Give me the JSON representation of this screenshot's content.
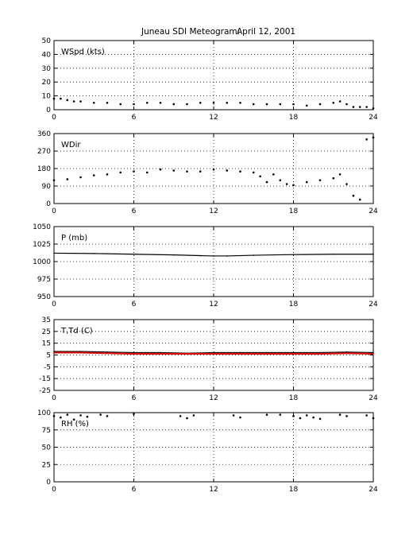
{
  "title": "Juneau SDI Meteogram:",
  "date": "April 12, 2001",
  "chart_data": [
    {
      "type": "scatter",
      "label": "WSpd (kts)",
      "xlim": [
        0,
        24
      ],
      "ylim": [
        0,
        50
      ],
      "xticks": [
        0,
        6,
        12,
        18,
        24
      ],
      "yticks": [
        0,
        10,
        20,
        30,
        40,
        50
      ],
      "grid": true,
      "series": [
        {
          "color": "#000000",
          "x": [
            0,
            0.5,
            1,
            1.5,
            2,
            3,
            4,
            5,
            6,
            7,
            8,
            9,
            10,
            11,
            12,
            13,
            14,
            15,
            16,
            17,
            18,
            19,
            20,
            21,
            21.5,
            22,
            22.5,
            23,
            23.5,
            24
          ],
          "values": [
            8,
            8,
            7,
            6,
            6,
            5,
            5,
            4,
            4,
            5,
            5,
            4,
            4,
            5,
            5,
            5,
            5,
            4,
            4,
            4,
            4,
            3,
            4,
            5,
            6,
            4,
            2,
            2,
            2,
            1
          ]
        }
      ]
    },
    {
      "type": "scatter",
      "label": "WDir",
      "xlim": [
        0,
        24
      ],
      "ylim": [
        0,
        360
      ],
      "xticks": [
        0,
        6,
        12,
        18,
        24
      ],
      "yticks": [
        0,
        90,
        180,
        270,
        360
      ],
      "grid": true,
      "series": [
        {
          "color": "#000000",
          "x": [
            0,
            1,
            2,
            3,
            4,
            5,
            6,
            7,
            8,
            9,
            10,
            11,
            12,
            13,
            14,
            15,
            15.5,
            16,
            16.5,
            17,
            17.5,
            18,
            19,
            20,
            21,
            21.5,
            22,
            22.5,
            23,
            23.5,
            24
          ],
          "values": [
            120,
            125,
            135,
            145,
            150,
            160,
            165,
            160,
            175,
            170,
            165,
            165,
            175,
            170,
            165,
            160,
            140,
            110,
            150,
            120,
            100,
            95,
            110,
            120,
            130,
            150,
            100,
            40,
            20,
            330,
            340
          ]
        }
      ]
    },
    {
      "type": "line",
      "label": "P (mb)",
      "xlim": [
        0,
        24
      ],
      "ylim": [
        950,
        1050
      ],
      "xticks": [
        0,
        6,
        12,
        18,
        24
      ],
      "yticks": [
        950,
        975,
        1000,
        1025,
        1050
      ],
      "grid": true,
      "series": [
        {
          "color": "#000000",
          "x": [
            0,
            3,
            6,
            9,
            11,
            12,
            13,
            15,
            18,
            21,
            24
          ],
          "values": [
            1012,
            1011.5,
            1010.5,
            1009.5,
            1008.5,
            1008,
            1008,
            1009,
            1010,
            1010.5,
            1010.5
          ]
        }
      ]
    },
    {
      "type": "line",
      "label": "T,Td (C)",
      "xlim": [
        0,
        24
      ],
      "ylim": [
        -25,
        35
      ],
      "xticks": [
        0,
        6,
        12,
        18,
        24
      ],
      "yticks": [
        -25,
        -15,
        -5,
        5,
        15,
        25,
        35
      ],
      "grid": true,
      "series": [
        {
          "color": "#000000",
          "x": [
            0,
            2,
            4,
            6,
            8,
            10,
            12,
            14,
            16,
            18,
            20,
            22,
            24
          ],
          "values": [
            8,
            8,
            7.5,
            7,
            7,
            6.5,
            7,
            7,
            7,
            7,
            7,
            7.5,
            7
          ]
        },
        {
          "color": "#e00000",
          "x": [
            0,
            2,
            4,
            6,
            8,
            10,
            12,
            14,
            16,
            18,
            20,
            22,
            24
          ],
          "values": [
            7,
            7,
            6.5,
            6,
            6,
            6,
            6,
            6,
            6,
            6,
            6,
            6.5,
            6
          ]
        }
      ]
    },
    {
      "type": "scatter",
      "label": "RH (%)",
      "xlim": [
        0,
        24
      ],
      "ylim": [
        0,
        100
      ],
      "xticks": [
        0,
        6,
        12,
        18,
        24
      ],
      "yticks": [
        0,
        25,
        50,
        75,
        100
      ],
      "grid": true,
      "series": [
        {
          "color": "#000000",
          "x": [
            0,
            0.5,
            1,
            1.5,
            2,
            2.5,
            3.5,
            4,
            6,
            9.5,
            10,
            10.5,
            13.5,
            14,
            16,
            17,
            18,
            18.5,
            19,
            19.5,
            20,
            21.5,
            22,
            23.5,
            24
          ],
          "values": [
            95,
            93,
            97,
            90,
            96,
            94,
            97,
            95,
            98,
            95,
            92,
            96,
            96,
            93,
            97,
            97,
            95,
            92,
            96,
            93,
            91,
            97,
            95,
            96,
            92
          ]
        }
      ]
    }
  ]
}
